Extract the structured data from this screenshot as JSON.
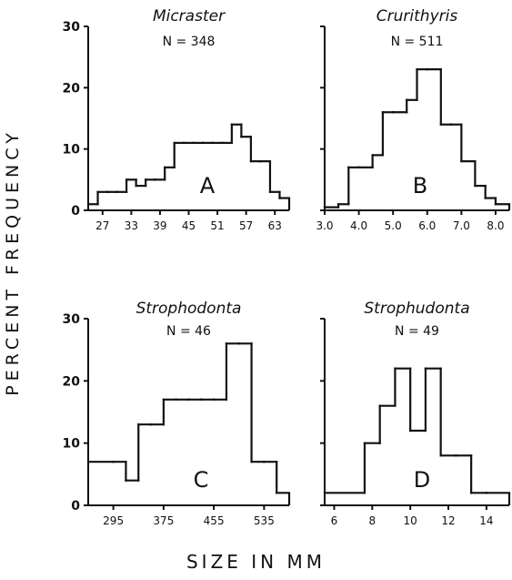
{
  "figure": {
    "ylabel": "PERCENT FREQUENCY",
    "xlabel": "SIZE IN MM",
    "colors": {
      "ink": "#111111",
      "background": "#ffffff"
    }
  },
  "chart_data": [
    {
      "id": "A",
      "type": "histogram-step",
      "title": "Micraster",
      "subtitle": "N = 348",
      "panel_letter": "A",
      "ylim": [
        0,
        30
      ],
      "yticks": [
        0,
        10,
        20,
        30
      ],
      "ytick_labels": [
        "0",
        "10",
        "20",
        "30"
      ],
      "xlim": [
        24,
        66
      ],
      "xticks": [
        27,
        33,
        39,
        45,
        51,
        57,
        63
      ],
      "xtick_labels": [
        "27",
        "33",
        "39",
        "45",
        "51",
        "57",
        "63"
      ],
      "bin_edges": [
        24,
        26,
        28,
        30,
        32,
        34,
        36,
        38,
        40,
        42,
        44,
        46,
        48,
        50,
        52,
        54,
        56,
        58,
        60,
        62,
        64,
        66
      ],
      "values": [
        1,
        3,
        3,
        3,
        5,
        4,
        5,
        5,
        7,
        11,
        11,
        11,
        11,
        11,
        11,
        14,
        12,
        8,
        8,
        3,
        2
      ]
    },
    {
      "id": "B",
      "type": "histogram-step",
      "title": "Crurithyris",
      "subtitle": "N = 511",
      "panel_letter": "B",
      "ylim": [
        0,
        30
      ],
      "yticks": [
        0,
        10,
        20,
        30
      ],
      "ytick_labels": [
        "",
        "",
        "",
        ""
      ],
      "xlim": [
        3.0,
        8.4
      ],
      "xticks": [
        3.0,
        4.0,
        5.0,
        6.0,
        7.0,
        8.0
      ],
      "xtick_labels": [
        "3.0",
        "4.0",
        "5.0",
        "6.0",
        "7.0",
        "8.0"
      ],
      "bin_edges": [
        3.0,
        3.4,
        3.7,
        4.0,
        4.4,
        4.7,
        5.0,
        5.4,
        5.7,
        6.0,
        6.4,
        6.7,
        7.0,
        7.4,
        7.7,
        8.0,
        8.4
      ],
      "values": [
        0.5,
        1,
        7,
        7,
        9,
        16,
        16,
        18,
        23,
        23,
        14,
        14,
        8,
        4,
        2,
        1
      ]
    },
    {
      "id": "C",
      "type": "histogram-step",
      "title": "Strophodonta",
      "subtitle": "N = 46",
      "panel_letter": "C",
      "ylim": [
        0,
        30
      ],
      "yticks": [
        0,
        10,
        20,
        30
      ],
      "ytick_labels": [
        "0",
        "10",
        "20",
        "30"
      ],
      "xlim": [
        255,
        575
      ],
      "xticks": [
        295,
        375,
        455,
        535
      ],
      "xtick_labels": [
        "295",
        "375",
        "455",
        "535"
      ],
      "bin_edges": [
        255,
        295,
        315,
        335,
        355,
        375,
        395,
        415,
        435,
        455,
        475,
        495,
        515,
        535,
        555,
        575
      ],
      "values": [
        7,
        7,
        4,
        13,
        13,
        17,
        17,
        17,
        17,
        17,
        26,
        26,
        7,
        7,
        2
      ]
    },
    {
      "id": "D",
      "type": "histogram-step",
      "title": "Strophudonta",
      "subtitle": "N = 49",
      "panel_letter": "D",
      "ylim": [
        0,
        30
      ],
      "yticks": [
        0,
        10,
        20,
        30
      ],
      "ytick_labels": [
        "",
        "",
        "",
        ""
      ],
      "xlim": [
        5.5,
        15.2
      ],
      "xticks": [
        6,
        8,
        10,
        12,
        14
      ],
      "xtick_labels": [
        "6",
        "8",
        "10",
        "12",
        "14"
      ],
      "bin_edges": [
        5.5,
        7.6,
        8.4,
        9.2,
        10.0,
        10.8,
        11.6,
        12.4,
        13.2,
        14.0,
        15.2
      ],
      "values": [
        2,
        10,
        16,
        22,
        12,
        22,
        8,
        8,
        2,
        2
      ]
    }
  ]
}
